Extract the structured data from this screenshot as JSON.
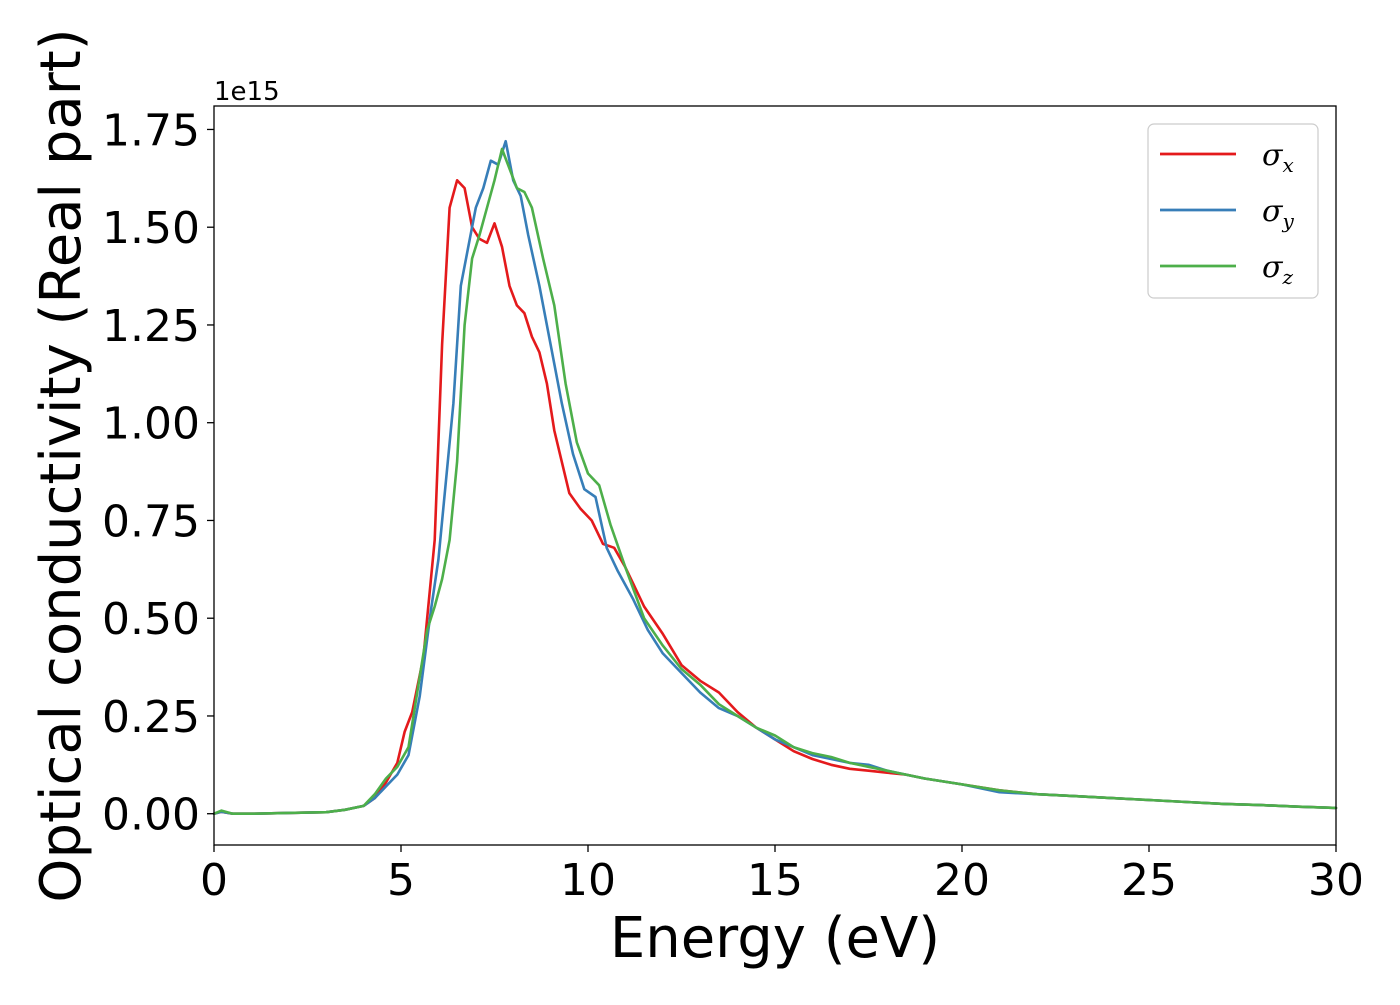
{
  "chart_data": {
    "type": "line",
    "xlabel": "Energy (eV)",
    "ylabel": "Optical conductivity (Real part)",
    "y_offset_label": "1e15",
    "xlim": [
      0,
      30
    ],
    "ylim": [
      -0.08,
      1.81
    ],
    "x_ticks": [
      0,
      5,
      10,
      15,
      20,
      25,
      30
    ],
    "x_tick_labels": [
      "0",
      "5",
      "10",
      "15",
      "20",
      "25",
      "30"
    ],
    "y_ticks": [
      0.0,
      0.25,
      0.5,
      0.75,
      1.0,
      1.25,
      1.5,
      1.75
    ],
    "y_tick_labels": [
      "0.00",
      "0.25",
      "0.50",
      "0.75",
      "1.00",
      "1.25",
      "1.50",
      "1.75"
    ],
    "grid": false,
    "legend_position": "top-right",
    "series": [
      {
        "name": "σx",
        "symbol": "σ",
        "subscript": "x",
        "color": "#e41a1c",
        "x": [
          0,
          0.2,
          0.5,
          1,
          2,
          3,
          3.5,
          4,
          4.3,
          4.6,
          4.9,
          5.1,
          5.3,
          5.6,
          5.9,
          6.1,
          6.3,
          6.5,
          6.7,
          6.9,
          7.1,
          7.3,
          7.5,
          7.7,
          7.9,
          8.1,
          8.3,
          8.5,
          8.7,
          8.9,
          9.1,
          9.3,
          9.5,
          9.8,
          10.1,
          10.4,
          10.7,
          11,
          11.5,
          12,
          12.5,
          13,
          13.5,
          14,
          14.5,
          15,
          15.5,
          16,
          16.5,
          17,
          17.5,
          18,
          18.5,
          19,
          20,
          21,
          22,
          23,
          24,
          25,
          26,
          27,
          28,
          29,
          30
        ],
        "y": [
          0.0,
          0.005,
          0.0,
          0.0,
          0.002,
          0.004,
          0.01,
          0.02,
          0.04,
          0.08,
          0.13,
          0.21,
          0.26,
          0.4,
          0.7,
          1.2,
          1.55,
          1.62,
          1.6,
          1.5,
          1.47,
          1.46,
          1.51,
          1.45,
          1.35,
          1.3,
          1.28,
          1.22,
          1.18,
          1.1,
          0.98,
          0.9,
          0.82,
          0.78,
          0.75,
          0.69,
          0.68,
          0.63,
          0.53,
          0.46,
          0.38,
          0.34,
          0.31,
          0.26,
          0.22,
          0.19,
          0.16,
          0.14,
          0.125,
          0.115,
          0.11,
          0.105,
          0.1,
          0.09,
          0.075,
          0.06,
          0.05,
          0.045,
          0.04,
          0.035,
          0.03,
          0.025,
          0.022,
          0.018,
          0.015
        ]
      },
      {
        "name": "σy",
        "symbol": "σ",
        "subscript": "y",
        "color": "#377eb8",
        "x": [
          0,
          0.2,
          0.5,
          1,
          2,
          3,
          3.5,
          4,
          4.3,
          4.6,
          4.9,
          5.2,
          5.5,
          5.8,
          6.0,
          6.2,
          6.4,
          6.6,
          6.8,
          7.0,
          7.2,
          7.4,
          7.6,
          7.8,
          8.0,
          8.2,
          8.4,
          8.7,
          9.0,
          9.3,
          9.6,
          9.9,
          10.2,
          10.5,
          10.8,
          11.2,
          11.6,
          12,
          12.5,
          13,
          13.5,
          14,
          14.5,
          15,
          15.5,
          16,
          16.5,
          17,
          17.5,
          18,
          18.5,
          19,
          20,
          21,
          22,
          23,
          24,
          25,
          26,
          27,
          28,
          29,
          30
        ],
        "y": [
          0.0,
          0.005,
          0.0,
          0.0,
          0.002,
          0.004,
          0.01,
          0.02,
          0.04,
          0.07,
          0.1,
          0.15,
          0.3,
          0.52,
          0.65,
          0.85,
          1.05,
          1.35,
          1.45,
          1.55,
          1.6,
          1.67,
          1.66,
          1.72,
          1.62,
          1.58,
          1.48,
          1.35,
          1.2,
          1.05,
          0.92,
          0.83,
          0.81,
          0.68,
          0.62,
          0.55,
          0.47,
          0.41,
          0.36,
          0.31,
          0.27,
          0.25,
          0.22,
          0.19,
          0.17,
          0.15,
          0.14,
          0.13,
          0.125,
          0.11,
          0.1,
          0.09,
          0.075,
          0.055,
          0.05,
          0.045,
          0.04,
          0.035,
          0.03,
          0.025,
          0.022,
          0.018,
          0.015
        ]
      },
      {
        "name": "σz",
        "symbol": "σ",
        "subscript": "z",
        "color": "#4daf4a",
        "x": [
          0,
          0.2,
          0.5,
          1,
          2,
          3,
          3.5,
          4,
          4.3,
          4.6,
          4.9,
          5.2,
          5.5,
          5.7,
          5.9,
          6.1,
          6.3,
          6.5,
          6.7,
          6.9,
          7.1,
          7.3,
          7.5,
          7.7,
          7.9,
          8.1,
          8.3,
          8.5,
          8.8,
          9.1,
          9.4,
          9.7,
          10.0,
          10.3,
          10.6,
          11,
          11.5,
          12,
          12.5,
          13,
          13.5,
          14,
          14.5,
          15,
          15.5,
          16,
          16.5,
          17,
          17.5,
          18,
          18.5,
          19,
          20,
          21,
          22,
          23,
          24,
          25,
          26,
          27,
          28,
          29,
          30
        ],
        "y": [
          0.0,
          0.008,
          0.0,
          0.0,
          0.002,
          0.004,
          0.01,
          0.02,
          0.05,
          0.09,
          0.12,
          0.17,
          0.35,
          0.47,
          0.53,
          0.6,
          0.7,
          0.9,
          1.25,
          1.42,
          1.48,
          1.55,
          1.62,
          1.7,
          1.65,
          1.6,
          1.59,
          1.55,
          1.42,
          1.3,
          1.1,
          0.95,
          0.87,
          0.84,
          0.74,
          0.63,
          0.5,
          0.43,
          0.37,
          0.33,
          0.28,
          0.25,
          0.22,
          0.2,
          0.17,
          0.155,
          0.145,
          0.13,
          0.12,
          0.11,
          0.1,
          0.09,
          0.075,
          0.06,
          0.05,
          0.045,
          0.04,
          0.035,
          0.03,
          0.025,
          0.022,
          0.018,
          0.015
        ]
      }
    ]
  }
}
